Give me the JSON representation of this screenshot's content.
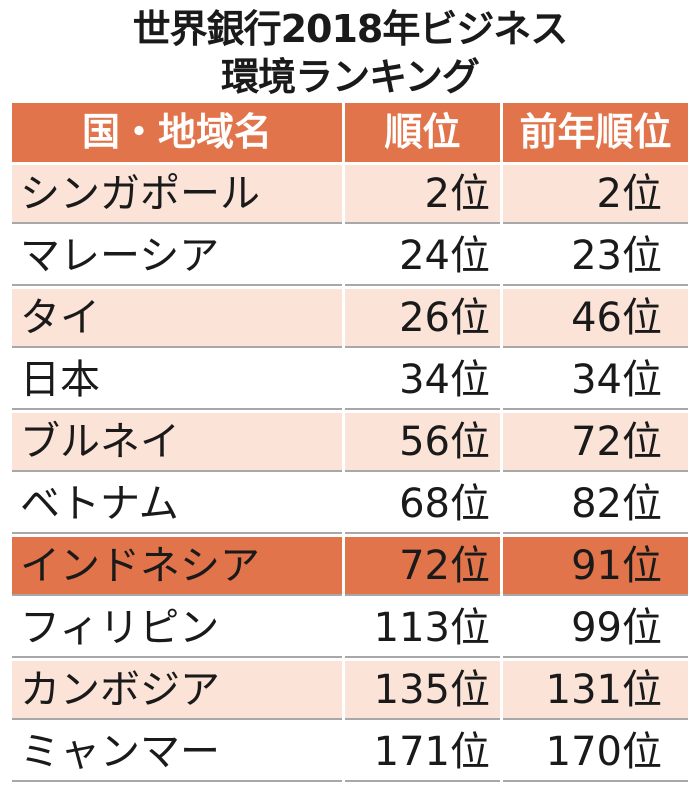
{
  "title": {
    "line1": "世界銀行2018年ビジネス",
    "line2": "環境ランキング"
  },
  "colors": {
    "header": "#e2744b",
    "highlight": "#e2744b",
    "stripe": "#fbe3d8",
    "plain": "#ffffff",
    "border": "#a8a8a8"
  },
  "chart_data": {
    "type": "table",
    "columns": [
      "国・地域名",
      "順位",
      "前年順位"
    ],
    "rows": [
      {
        "name": "シンガポール",
        "rank": "2位",
        "prev": "2位"
      },
      {
        "name": "マレーシア",
        "rank": "24位",
        "prev": "23位"
      },
      {
        "name": "タイ",
        "rank": "26位",
        "prev": "46位"
      },
      {
        "name": "日本",
        "rank": "34位",
        "prev": "34位"
      },
      {
        "name": "ブルネイ",
        "rank": "56位",
        "prev": "72位"
      },
      {
        "name": "ベトナム",
        "rank": "68位",
        "prev": "82位"
      },
      {
        "name": "インドネシア",
        "rank": "72位",
        "prev": "91位"
      },
      {
        "name": "フィリピン",
        "rank": "113位",
        "prev": "99位"
      },
      {
        "name": "カンボジア",
        "rank": "135位",
        "prev": "131位"
      },
      {
        "name": "ミャンマー",
        "rank": "171位",
        "prev": "170位"
      }
    ],
    "highlighted_row": "インドネシア"
  }
}
